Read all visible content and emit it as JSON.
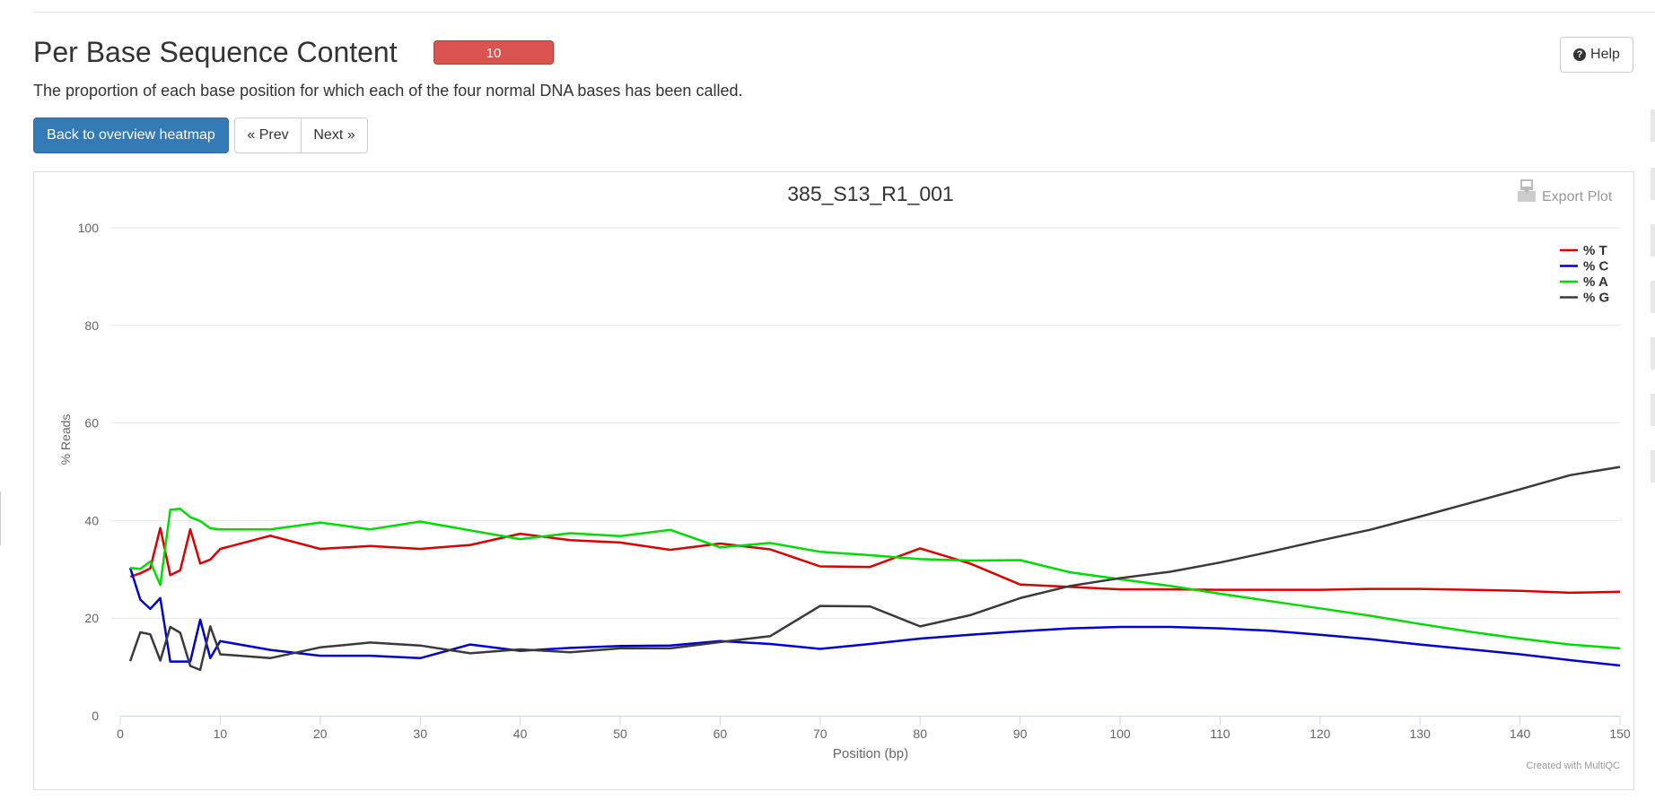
{
  "page": {
    "title": "Per Base Sequence Content",
    "badge": "10",
    "help_label": "Help",
    "description": "The proportion of each base position for which each of the four normal DNA bases has been called."
  },
  "nav": {
    "back_label": "Back to overview heatmap",
    "prev_label": "« Prev",
    "next_label": "Next »"
  },
  "plot": {
    "export_label": "Export Plot",
    "credit": "Created with MultiQC"
  },
  "chart_data": {
    "type": "line",
    "title": "385_S13_R1_001",
    "xlabel": "Position (bp)",
    "ylabel": "% Reads",
    "xlim": [
      0,
      150
    ],
    "ylim": [
      0,
      100
    ],
    "xticks": [
      0,
      10,
      20,
      30,
      40,
      50,
      60,
      70,
      80,
      90,
      100,
      110,
      120,
      130,
      140,
      150
    ],
    "yticks": [
      0,
      20,
      40,
      60,
      80,
      100
    ],
    "grid": true,
    "legend_position": "top-right",
    "series": [
      {
        "name": "% T",
        "color": "#dd0000",
        "points": [
          [
            1,
            28.5
          ],
          [
            2,
            29.2
          ],
          [
            3,
            30.2
          ],
          [
            4,
            38.5
          ],
          [
            5,
            28.8
          ],
          [
            6,
            29.8
          ],
          [
            7,
            38.2
          ],
          [
            8,
            31.2
          ],
          [
            9,
            32.0
          ],
          [
            10,
            34.2
          ],
          [
            15,
            36.9
          ],
          [
            20,
            34.2
          ],
          [
            25,
            34.8
          ],
          [
            30,
            34.2
          ],
          [
            35,
            35.0
          ],
          [
            40,
            37.3
          ],
          [
            45,
            36.0
          ],
          [
            50,
            35.5
          ],
          [
            55,
            34.0
          ],
          [
            60,
            35.3
          ],
          [
            65,
            34.1
          ],
          [
            70,
            30.6
          ],
          [
            75,
            30.5
          ],
          [
            80,
            34.3
          ],
          [
            85,
            31.2
          ],
          [
            90,
            26.9
          ],
          [
            95,
            26.4
          ],
          [
            100,
            25.9
          ],
          [
            105,
            25.9
          ],
          [
            110,
            25.8
          ],
          [
            115,
            25.8
          ],
          [
            120,
            25.8
          ],
          [
            125,
            26.0
          ],
          [
            130,
            26.0
          ],
          [
            135,
            25.8
          ],
          [
            140,
            25.6
          ],
          [
            145,
            25.2
          ],
          [
            150,
            25.4
          ]
        ]
      },
      {
        "name": "% C",
        "color": "#0000d1",
        "points": [
          [
            1,
            30.3
          ],
          [
            2,
            23.8
          ],
          [
            3,
            21.9
          ],
          [
            4,
            24.1
          ],
          [
            5,
            11.1
          ],
          [
            6,
            11.1
          ],
          [
            7,
            11.1
          ],
          [
            8,
            19.7
          ],
          [
            9,
            11.8
          ],
          [
            10,
            15.3
          ],
          [
            15,
            13.5
          ],
          [
            20,
            12.3
          ],
          [
            25,
            12.3
          ],
          [
            30,
            11.8
          ],
          [
            35,
            14.6
          ],
          [
            40,
            13.3
          ],
          [
            45,
            13.9
          ],
          [
            50,
            14.3
          ],
          [
            55,
            14.4
          ],
          [
            60,
            15.3
          ],
          [
            65,
            14.7
          ],
          [
            70,
            13.7
          ],
          [
            75,
            14.7
          ],
          [
            80,
            15.8
          ],
          [
            85,
            16.6
          ],
          [
            90,
            17.3
          ],
          [
            95,
            17.9
          ],
          [
            100,
            18.2
          ],
          [
            105,
            18.2
          ],
          [
            110,
            17.9
          ],
          [
            115,
            17.4
          ],
          [
            120,
            16.6
          ],
          [
            125,
            15.7
          ],
          [
            130,
            14.6
          ],
          [
            135,
            13.6
          ],
          [
            140,
            12.6
          ],
          [
            145,
            11.4
          ],
          [
            150,
            10.3
          ]
        ]
      },
      {
        "name": "% A",
        "color": "#00dd00",
        "points": [
          [
            1,
            30.3
          ],
          [
            2,
            30.1
          ],
          [
            3,
            31.6
          ],
          [
            4,
            26.8
          ],
          [
            5,
            42.2
          ],
          [
            6,
            42.4
          ],
          [
            7,
            40.7
          ],
          [
            8,
            39.9
          ],
          [
            9,
            38.4
          ],
          [
            10,
            38.2
          ],
          [
            15,
            38.2
          ],
          [
            20,
            39.6
          ],
          [
            25,
            38.2
          ],
          [
            30,
            39.8
          ],
          [
            35,
            38.0
          ],
          [
            40,
            36.2
          ],
          [
            45,
            37.4
          ],
          [
            50,
            36.8
          ],
          [
            55,
            38.1
          ],
          [
            60,
            34.5
          ],
          [
            65,
            35.4
          ],
          [
            70,
            33.6
          ],
          [
            75,
            32.9
          ],
          [
            80,
            32.1
          ],
          [
            85,
            31.8
          ],
          [
            90,
            31.9
          ],
          [
            95,
            29.4
          ],
          [
            100,
            28.0
          ],
          [
            105,
            26.6
          ],
          [
            110,
            25.0
          ],
          [
            115,
            23.5
          ],
          [
            120,
            22.0
          ],
          [
            125,
            20.5
          ],
          [
            130,
            18.8
          ],
          [
            135,
            17.2
          ],
          [
            140,
            15.8
          ],
          [
            145,
            14.6
          ],
          [
            150,
            13.8
          ]
        ]
      },
      {
        "name": "% G",
        "color": "#3a3a3a",
        "points": [
          [
            1,
            11.2
          ],
          [
            2,
            17.1
          ],
          [
            3,
            16.7
          ],
          [
            4,
            11.3
          ],
          [
            5,
            18.2
          ],
          [
            6,
            17.0
          ],
          [
            7,
            10.2
          ],
          [
            8,
            9.4
          ],
          [
            9,
            18.3
          ],
          [
            10,
            12.6
          ],
          [
            15,
            11.8
          ],
          [
            20,
            14.0
          ],
          [
            25,
            15.0
          ],
          [
            30,
            14.4
          ],
          [
            35,
            12.8
          ],
          [
            40,
            13.6
          ],
          [
            45,
            13.0
          ],
          [
            50,
            13.8
          ],
          [
            55,
            13.8
          ],
          [
            60,
            15.1
          ],
          [
            65,
            16.3
          ],
          [
            70,
            22.5
          ],
          [
            75,
            22.4
          ],
          [
            80,
            18.3
          ],
          [
            85,
            20.6
          ],
          [
            90,
            24.1
          ],
          [
            95,
            26.6
          ],
          [
            100,
            28.2
          ],
          [
            105,
            29.5
          ],
          [
            110,
            31.4
          ],
          [
            115,
            33.6
          ],
          [
            120,
            35.9
          ],
          [
            125,
            38.1
          ],
          [
            130,
            40.8
          ],
          [
            135,
            43.6
          ],
          [
            140,
            46.4
          ],
          [
            145,
            49.3
          ],
          [
            150,
            51.0
          ]
        ]
      }
    ]
  }
}
